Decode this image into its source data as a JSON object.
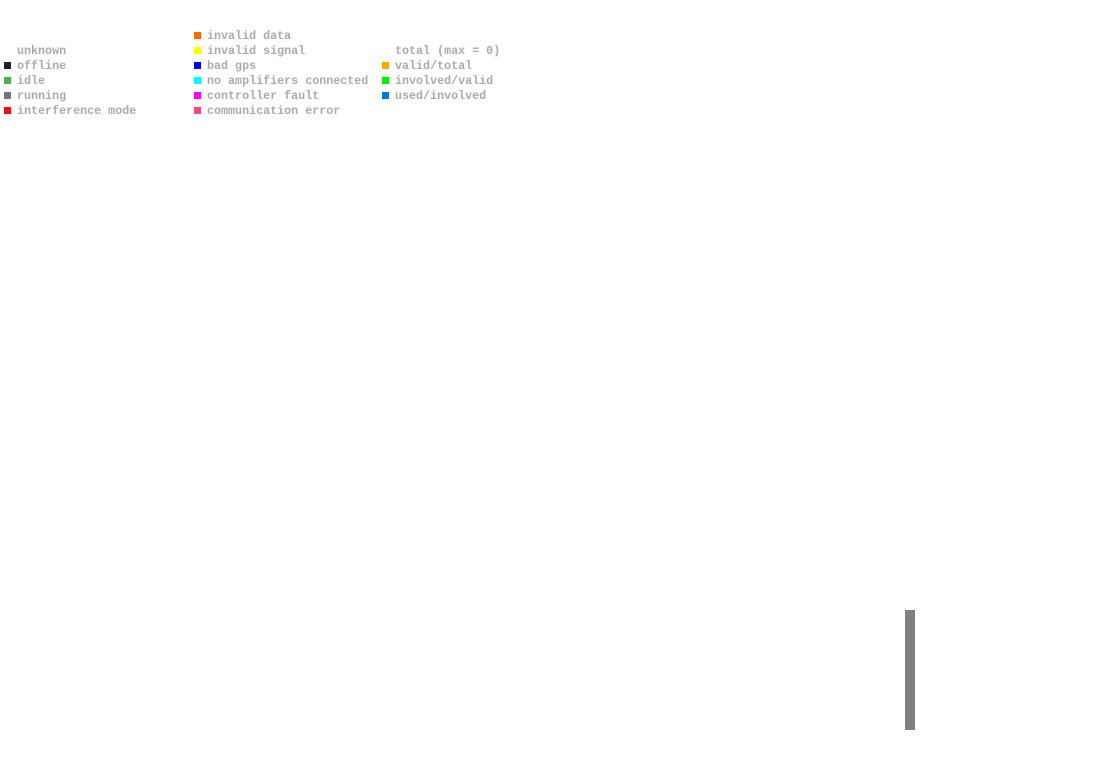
{
  "legend": {
    "columns": [
      {
        "items": [
          {
            "label": "unknown"
          },
          {
            "label": "offline",
            "color": "#222222"
          },
          {
            "label": "idle",
            "color": "#4caf50"
          },
          {
            "label": "running",
            "color": "#777777"
          },
          {
            "label": "interference mode",
            "color": "#ee1111"
          }
        ]
      },
      {
        "items": [
          {
            "label": "invalid data",
            "color": "#ff6a00"
          },
          {
            "label": "invalid signal",
            "color": "#ffff00"
          },
          {
            "label": "bad gps",
            "color": "#0000ff"
          },
          {
            "label": "no amplifiers connected",
            "color": "#00ffff"
          },
          {
            "label": "controller fault",
            "color": "#ff00ff"
          },
          {
            "label": "communication error",
            "color": "#ff4488"
          }
        ]
      },
      {
        "items": [
          {
            "label": "total (max = 0)"
          },
          {
            "label": "valid/total",
            "color": "#ffaa00"
          },
          {
            "label": "involved/valid",
            "color": "#00ee00"
          },
          {
            "label": "used/involved",
            "color": "#0077dd"
          }
        ]
      }
    ]
  }
}
